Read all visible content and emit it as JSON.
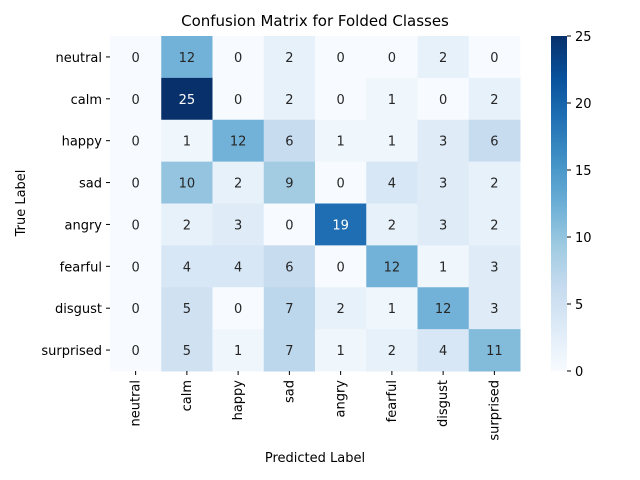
{
  "chart_data": {
    "type": "heatmap",
    "title": "Confusion Matrix for Folded Classes",
    "xlabel": "Predicted Label",
    "ylabel": "True Label",
    "x_categories": [
      "neutral",
      "calm",
      "happy",
      "sad",
      "angry",
      "fearful",
      "disgust",
      "surprised"
    ],
    "y_categories": [
      "neutral",
      "calm",
      "happy",
      "sad",
      "angry",
      "fearful",
      "disgust",
      "surprised"
    ],
    "values": [
      [
        0,
        12,
        0,
        2,
        0,
        0,
        2,
        0
      ],
      [
        0,
        25,
        0,
        2,
        0,
        1,
        0,
        2
      ],
      [
        0,
        1,
        12,
        6,
        1,
        1,
        3,
        6
      ],
      [
        0,
        10,
        2,
        9,
        0,
        4,
        3,
        2
      ],
      [
        0,
        2,
        3,
        0,
        19,
        2,
        3,
        2
      ],
      [
        0,
        4,
        4,
        6,
        0,
        12,
        1,
        3
      ],
      [
        0,
        5,
        0,
        7,
        2,
        1,
        12,
        3
      ],
      [
        0,
        5,
        1,
        7,
        1,
        2,
        4,
        11
      ]
    ],
    "colorbar": {
      "min": 0,
      "max": 25,
      "ticks": [
        0,
        5,
        10,
        15,
        20,
        25
      ]
    },
    "colormap": "Blues"
  }
}
